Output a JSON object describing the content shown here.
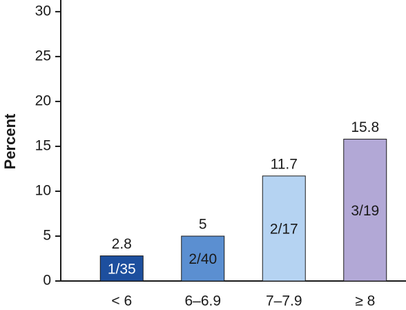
{
  "chart_data": {
    "type": "bar",
    "y_label": "Percent",
    "categories": [
      "< 6",
      "6–6.9",
      "7–7.9",
      "≥ 8"
    ],
    "values": [
      2.8,
      5,
      11.7,
      15.8
    ],
    "bar_labels": [
      "1/35",
      "2/40",
      "2/17",
      "3/19"
    ],
    "colors": [
      "#1d4f9e",
      "#5b8fd1",
      "#b5d3f2",
      "#b2a8d6"
    ],
    "inner_label_colors": [
      "#ffffff",
      "#1a1a1a",
      "#1a1a1a",
      "#1a1a1a"
    ],
    "ylim": [
      0,
      31.3
    ],
    "yticks": [
      0,
      5,
      10,
      15,
      20,
      25,
      30
    ],
    "grid": false
  }
}
